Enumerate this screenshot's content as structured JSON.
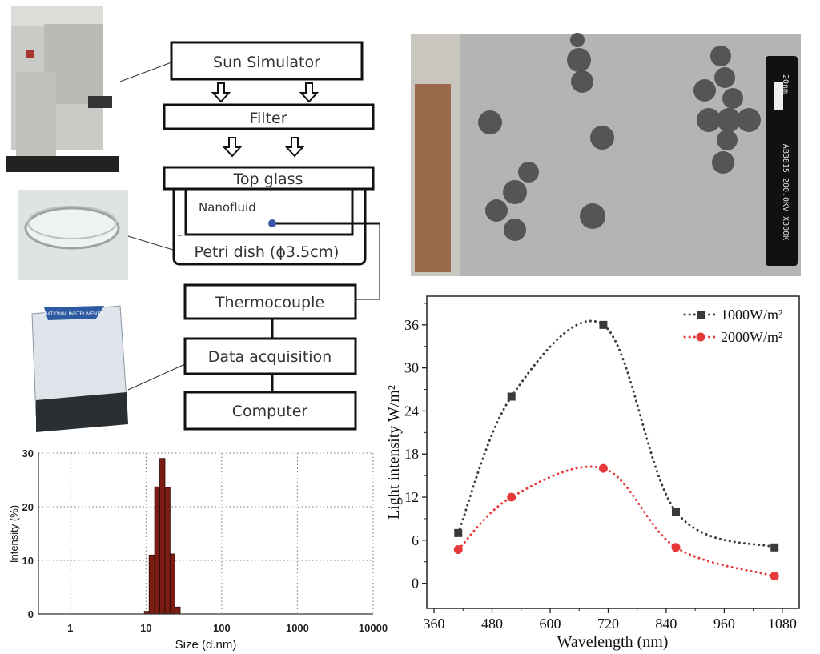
{
  "diagram": {
    "sun_simulator": "Sun Simulator",
    "filter": "Filter",
    "top_glass": "Top glass",
    "nanofluid": "Nanofluid",
    "petri_dish": "Petri dish (ϕ3.5cm)",
    "thermocouple": "Thermocouple",
    "data_acquisition": "Data acquisition",
    "computer": "Computer",
    "daq_brand": "NATIONAL INSTRUMENTS"
  },
  "tem": {
    "scale_bar": "20nm",
    "info": "AB3815 200.0KV X300K"
  },
  "colors": {
    "series1": "#3a3a3a",
    "series2": "#e8393a",
    "bars": "#7a1c14"
  },
  "chart_data": [
    {
      "type": "bar",
      "xlabel": "Size (d.nm)",
      "ylabel": "Intensity (%)",
      "xscale": "log",
      "xlim": [
        0.38,
        10000
      ],
      "ylim": [
        0,
        30
      ],
      "xticks": [
        "1",
        "10",
        "100",
        "1000",
        "10000"
      ],
      "yticks": [
        "0",
        "10",
        "20",
        "30"
      ],
      "grid": true,
      "bins": [
        {
          "from": 9.5,
          "to": 11.0,
          "value": 0.5
        },
        {
          "from": 11.0,
          "to": 13.0,
          "value": 11
        },
        {
          "from": 13.0,
          "to": 15.2,
          "value": 23.7
        },
        {
          "from": 15.2,
          "to": 17.8,
          "value": 29
        },
        {
          "from": 17.8,
          "to": 20.8,
          "value": 23.6
        },
        {
          "from": 20.8,
          "to": 24.2,
          "value": 11.2
        },
        {
          "from": 24.2,
          "to": 28.3,
          "value": 1.3
        }
      ]
    },
    {
      "type": "line",
      "xlabel": "Wavelength (nm)",
      "ylabel": "Light intensity W/m²",
      "xlim": [
        345,
        1115
      ],
      "ylim": [
        -3.5,
        40
      ],
      "xticks": [
        360,
        480,
        600,
        720,
        840,
        960,
        1080
      ],
      "yticks": [
        0,
        6,
        12,
        18,
        24,
        30,
        36
      ],
      "legend": "top-right",
      "series": [
        {
          "name": "1000W/m²",
          "marker": "square",
          "x": [
            410,
            520,
            710,
            860,
            1064
          ],
          "y": [
            7,
            26,
            36,
            10,
            5
          ]
        },
        {
          "name": "2000W/m²",
          "marker": "circle",
          "x": [
            410,
            520,
            710,
            860,
            1064
          ],
          "y": [
            4.7,
            12,
            16,
            5,
            1
          ]
        }
      ]
    }
  ]
}
